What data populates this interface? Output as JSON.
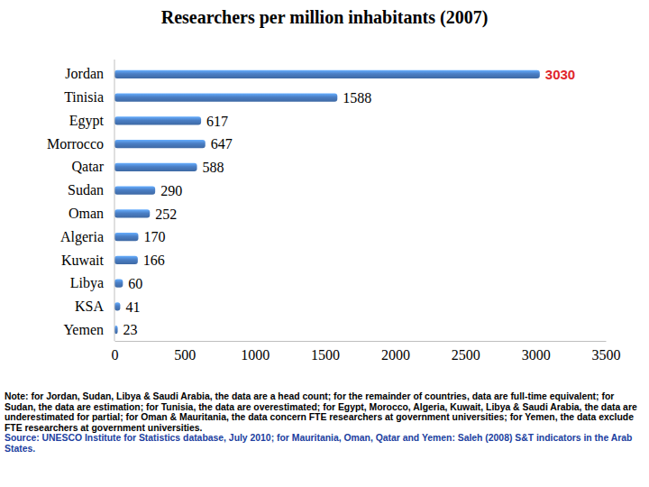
{
  "chart_data": {
    "type": "bar",
    "title": "Researchers per million inhabitants (2007)",
    "orientation": "horizontal",
    "categories": [
      "Jordan",
      "Tinisia",
      "Egypt",
      "Morrocco",
      "Qatar",
      "Sudan",
      "Oman",
      "Algeria",
      "Kuwait",
      "Libya",
      "KSA",
      "Yemen"
    ],
    "values": [
      3030,
      1588,
      617,
      647,
      588,
      290,
      252,
      170,
      166,
      60,
      41,
      23
    ],
    "color": "#4a7ec4",
    "xlim": [
      0,
      3500
    ],
    "xticks": [
      0,
      500,
      1000,
      1500,
      2000,
      2500,
      3000,
      3500
    ],
    "data_labels": true,
    "grid": false,
    "annotations": [
      "Note: for Jordan, Sudan, Libya & Saudi Arabia, the data are a head count; for the remainder of countries, data are full-time equivalent; for Sudan, the data are estimation; for Tunisia, the data are overestimated; for Egypt, Morocco, Algeria, Kuwait, Libya & Saudi Arabia, the data are underestimated for partial; for Oman & Mauritania, the data concern FTE researchers at government universities; for Yemen, the data exclude FTE researchers at government universities.",
      "Source: UNESCO Institute for Statistics database, July 2010; for Mauritania, Oman, Qatar and Yemen: Saleh (2008) S&T indicators in the Arab States."
    ]
  }
}
